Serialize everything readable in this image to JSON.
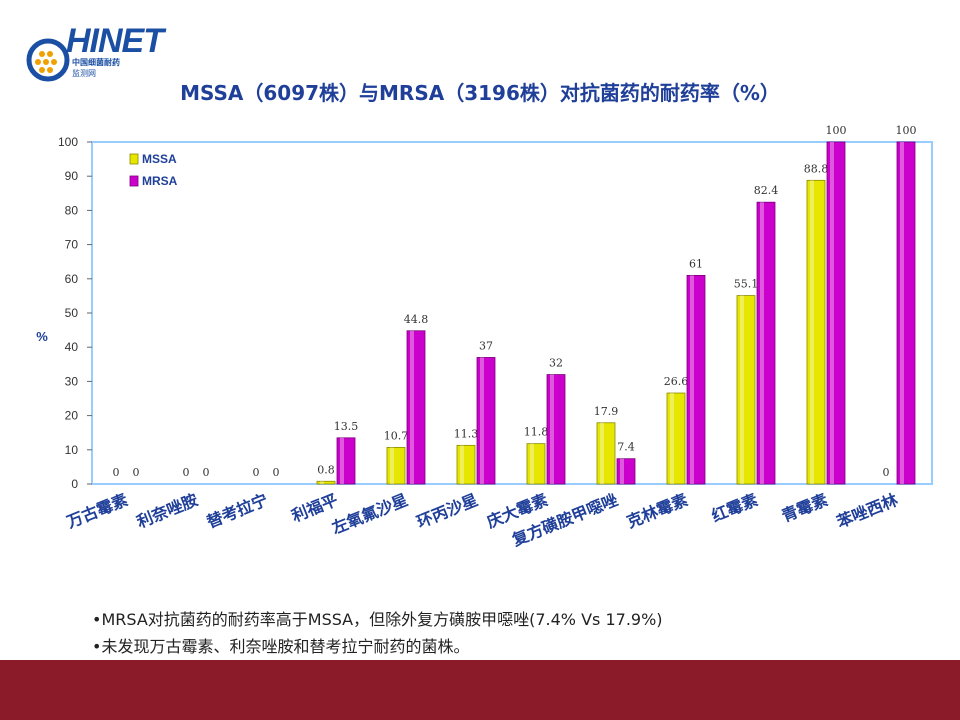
{
  "logo": {
    "name": "HINET",
    "line1": "中国细菌耐药",
    "line2": "监测网"
  },
  "title": "MSSA（6097株）与MRSA（3196株）对抗菌药的耐药率（%）",
  "notes": [
    "•MRSA对抗菌药的耐药率高于MSSA，但除外复方磺胺甲噁唑(7.4% Vs 17.9%)",
    "•未发现万古霉素、利奈唑胺和替考拉宁耐药的菌株。"
  ],
  "colors": {
    "mssa": "#e6e600",
    "mrsa": "#cc00cc",
    "axis": "#99ccff",
    "title": "#1f3f99",
    "footer": "#8c1b2a"
  },
  "chart_data": {
    "type": "bar",
    "categories": [
      "万古霉素",
      "利奈唑胺",
      "替考拉宁",
      "利福平",
      "左氧氟沙星",
      "环丙沙星",
      "庆大霉素",
      "复方磺胺甲噁唑",
      "克林霉素",
      "红霉素",
      "青霉素",
      "苯唑西林"
    ],
    "series": [
      {
        "name": "MSSA",
        "values": [
          0,
          0,
          0,
          0.8,
          10.7,
          11.3,
          11.8,
          17.9,
          26.6,
          55.1,
          88.8,
          0
        ]
      },
      {
        "name": "MRSA",
        "values": [
          0,
          0,
          0,
          13.5,
          44.8,
          37,
          32,
          7.4,
          61,
          82.4,
          100,
          100
        ]
      }
    ],
    "ylabel": "%",
    "ylim": [
      0,
      100
    ],
    "yticks": [
      0,
      10,
      20,
      30,
      40,
      50,
      60,
      70,
      80,
      90,
      100
    ],
    "legend": "top-left",
    "grid": false
  }
}
